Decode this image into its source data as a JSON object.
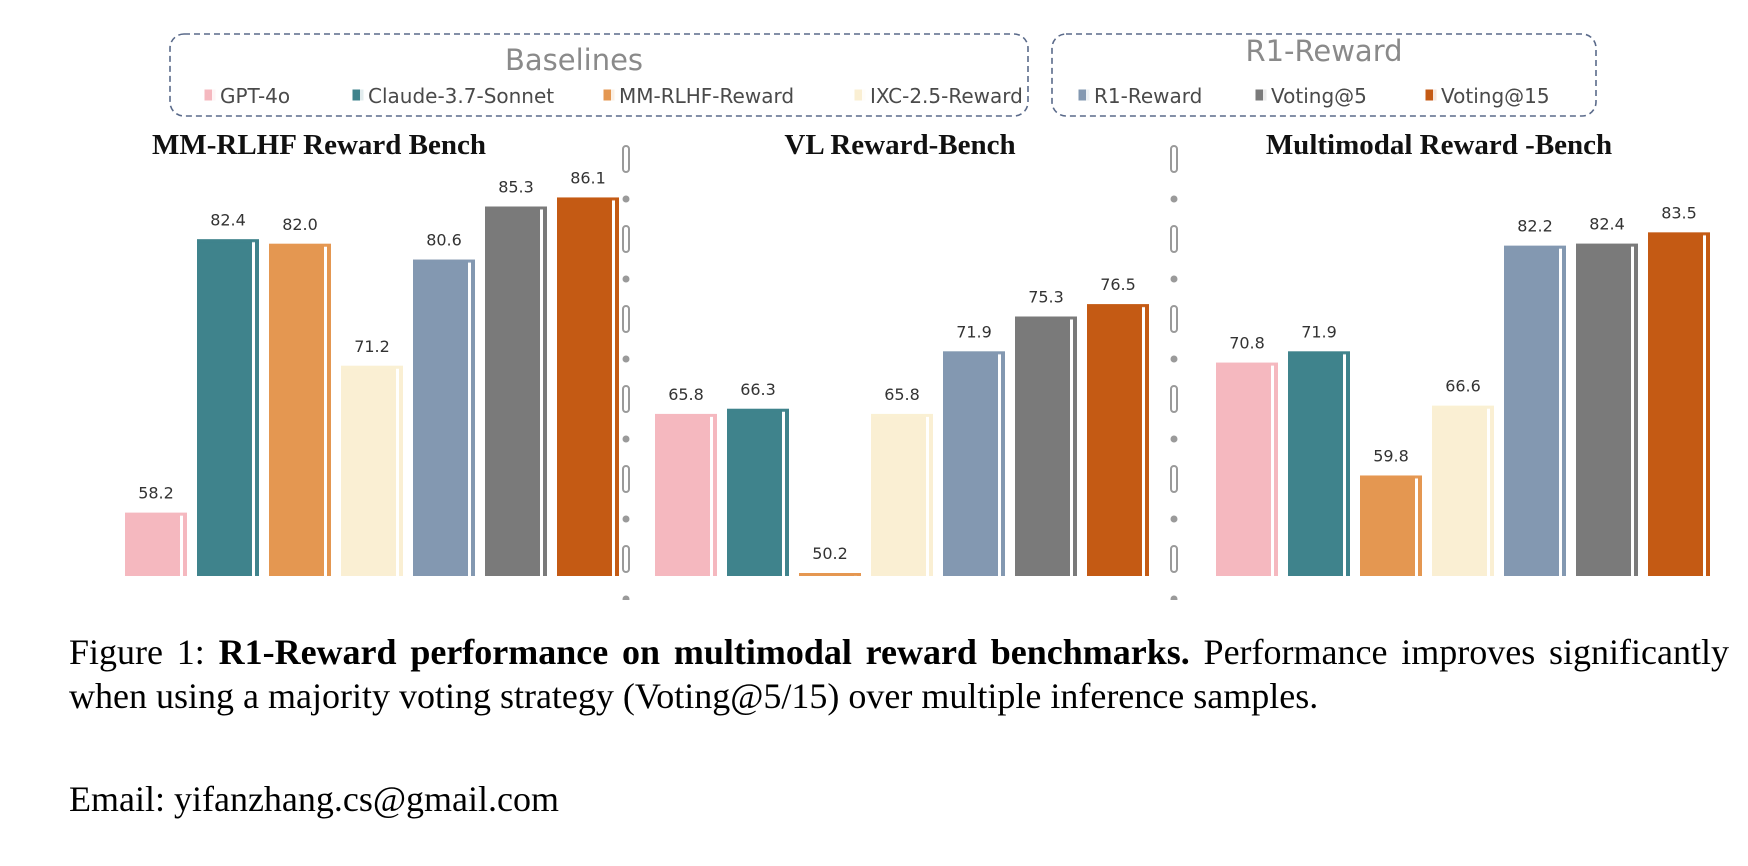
{
  "legend_groups": [
    {
      "title": "Baselines",
      "series": [
        "GPT-4o",
        "Claude-3.7-Sonnet",
        "MM-RLHF-Reward",
        "IXC-2.5-Reward"
      ]
    },
    {
      "title": "R1-Reward",
      "series": [
        "R1-Reward",
        "Voting@5",
        "Voting@15"
      ]
    }
  ],
  "chart_data": {
    "type": "bar",
    "series_colors": {
      "GPT-4o": "#f5b8bf",
      "Claude-3.7-Sonnet": "#3f838c",
      "MM-RLHF-Reward": "#e49751",
      "IXC-2.5-Reward": "#faefd3",
      "R1-Reward": "#8398b1",
      "Voting@5": "#7a7a7a",
      "Voting@15": "#c45a14"
    },
    "series": [
      "GPT-4o",
      "Claude-3.7-Sonnet",
      "MM-RLHF-Reward",
      "IXC-2.5-Reward",
      "R1-Reward",
      "Voting@5",
      "Voting@15"
    ],
    "panels": [
      {
        "title": "MM-RLHF Reward Bench",
        "values": [
          58.2,
          82.4,
          82.0,
          71.2,
          80.6,
          85.3,
          86.1
        ],
        "labels": [
          "58.2",
          "82.4",
          "82.0",
          "71.2",
          "80.6",
          "85.3",
          "86.1"
        ],
        "ylim": [
          52.6,
          88.0
        ]
      },
      {
        "title": "VL Reward-Bench",
        "values": [
          65.8,
          66.3,
          50.2,
          65.8,
          71.9,
          75.3,
          76.5
        ],
        "labels": [
          "65.8",
          "66.3",
          "50.2",
          "65.8",
          "71.9",
          "75.3",
          "76.5"
        ],
        "ylim": [
          50.0,
          89.0
        ]
      },
      {
        "title": "Multimodal Reward -Bench",
        "values": [
          70.8,
          71.9,
          59.8,
          66.6,
          82.2,
          82.4,
          83.5
        ],
        "labels": [
          "70.8",
          "71.9",
          "59.8",
          "66.6",
          "82.2",
          "82.4",
          "83.5"
        ],
        "ylim": [
          50.0,
          89.0
        ]
      }
    ],
    "grid": false,
    "legend_position": "top"
  },
  "caption": {
    "prefix": "Figure 1: ",
    "bold": "R1-Reward performance on multimodal reward benchmarks.",
    "rest": " Performance improves significantly when using a majority voting strategy (Voting@5/15) over multiple inference samples."
  },
  "email": "Email: yifanzhang.cs@gmail.com"
}
